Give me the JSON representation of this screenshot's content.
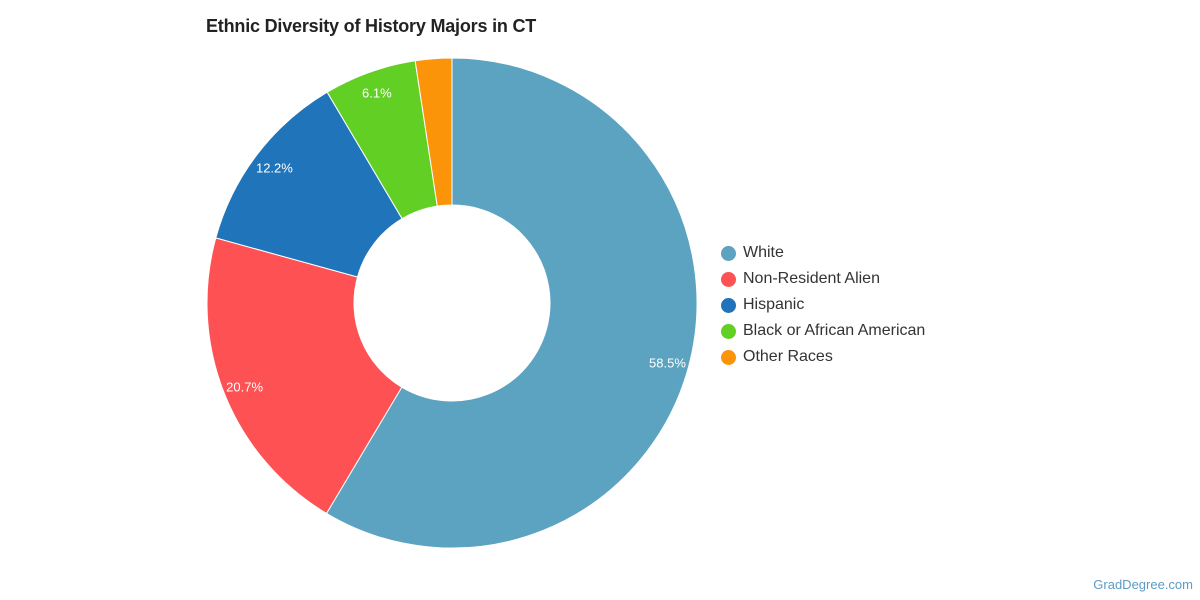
{
  "chart_data": {
    "type": "pie",
    "variant": "donut",
    "title": "Ethnic Diversity of History Majors in CT",
    "series": [
      {
        "name": "White",
        "value": 58.5,
        "label": "58.5%",
        "color": "#5ba3c0"
      },
      {
        "name": "Non-Resident Alien",
        "value": 20.7,
        "label": "20.7%",
        "color": "#fe5153"
      },
      {
        "name": "Hispanic",
        "value": 12.2,
        "label": "12.2%",
        "color": "#1f74ba"
      },
      {
        "name": "Black or African American",
        "value": 6.1,
        "label": "6.1%",
        "color": "#62cf25"
      },
      {
        "name": "Other Races",
        "value": 2.4,
        "label": "",
        "color": "#fb9409"
      }
    ],
    "legend_position": "right",
    "start_angle": "12 o'clock",
    "direction": "clockwise"
  },
  "credit": "GradDegree.com"
}
